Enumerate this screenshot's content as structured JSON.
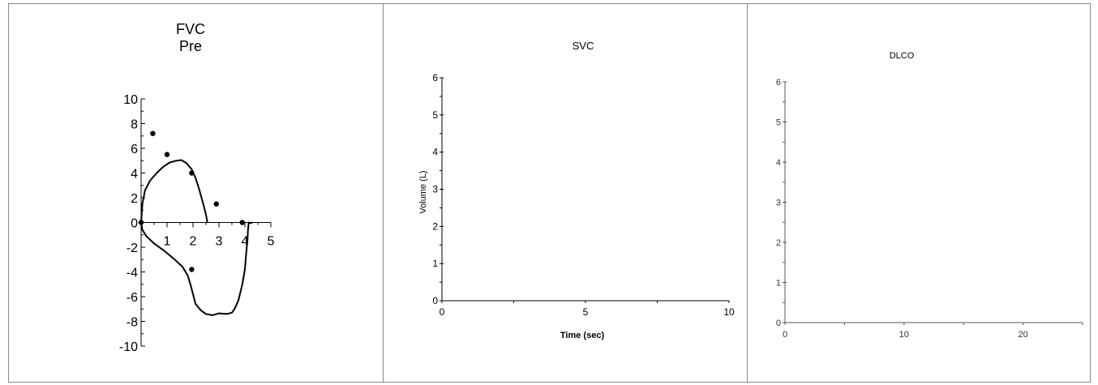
{
  "chart_data": [
    {
      "type": "line",
      "title": "FVC",
      "subtitle": "Pre",
      "xlabel": "",
      "ylabel": "",
      "xlim": [
        0,
        5
      ],
      "ylim": [
        -10,
        10
      ],
      "xticks": [
        "1",
        "2",
        "3",
        "4",
        "5"
      ],
      "yticks": [
        "10",
        "8",
        "6",
        "4",
        "2",
        "0",
        "-2",
        "-4",
        "-6",
        "-8",
        "-10"
      ],
      "grid": false,
      "series": [
        {
          "kind": "line",
          "x": [
            0,
            0.05,
            0.15,
            0.35,
            0.6,
            0.85,
            1.1,
            1.35,
            1.55,
            1.75,
            1.95,
            2.1,
            2.25,
            2.38,
            2.48,
            2.53,
            2.55,
            2.55
          ],
          "y": [
            0,
            1.5,
            2.6,
            3.4,
            4.0,
            4.5,
            4.85,
            5.0,
            5.05,
            4.8,
            4.3,
            3.6,
            2.6,
            1.6,
            0.8,
            0.3,
            0.05,
            0
          ]
        },
        {
          "kind": "line",
          "x": [
            0,
            0.05,
            0.2,
            0.5,
            0.9,
            1.3,
            1.6,
            1.8,
            1.9,
            2.0,
            2.1,
            2.3,
            2.5,
            2.75,
            3.0,
            3.3,
            3.5,
            3.6,
            3.75,
            3.9,
            4.0,
            4.05,
            4.1,
            4.12,
            4.14,
            4.15,
            4.2,
            4.3
          ],
          "y": [
            0,
            -0.6,
            -1.1,
            -1.7,
            -2.3,
            -3.0,
            -3.6,
            -4.3,
            -5.0,
            -5.8,
            -6.6,
            -7.1,
            -7.4,
            -7.5,
            -7.35,
            -7.4,
            -7.3,
            -7.0,
            -6.3,
            -5.0,
            -3.8,
            -2.5,
            -1.4,
            -0.6,
            -0.15,
            0,
            -0.05,
            0
          ]
        },
        {
          "kind": "scatter",
          "x": [
            0,
            0.45,
            1.0,
            1.95,
            2.9,
            3.9,
            1.95
          ],
          "y": [
            0,
            7.2,
            5.5,
            4.0,
            1.5,
            0,
            -3.8
          ]
        }
      ]
    },
    {
      "type": "line",
      "title": "SVC",
      "xlabel": "Time (sec)",
      "ylabel": "Volume (L)",
      "xlim": [
        0,
        10
      ],
      "ylim": [
        0,
        6
      ],
      "xticks": [
        "0",
        "5",
        "10"
      ],
      "yticks": [
        "0",
        "1",
        "2",
        "3",
        "4",
        "5",
        "6"
      ],
      "grid": false,
      "series": []
    },
    {
      "type": "line",
      "title": "DLCO",
      "xlabel": "",
      "ylabel": "",
      "xlim": [
        0,
        25
      ],
      "ylim": [
        0,
        6
      ],
      "xticks": [
        "0",
        "10",
        "20"
      ],
      "yticks": [
        "0",
        "1",
        "2",
        "3",
        "4",
        "5",
        "6"
      ],
      "grid": false,
      "series": []
    }
  ]
}
